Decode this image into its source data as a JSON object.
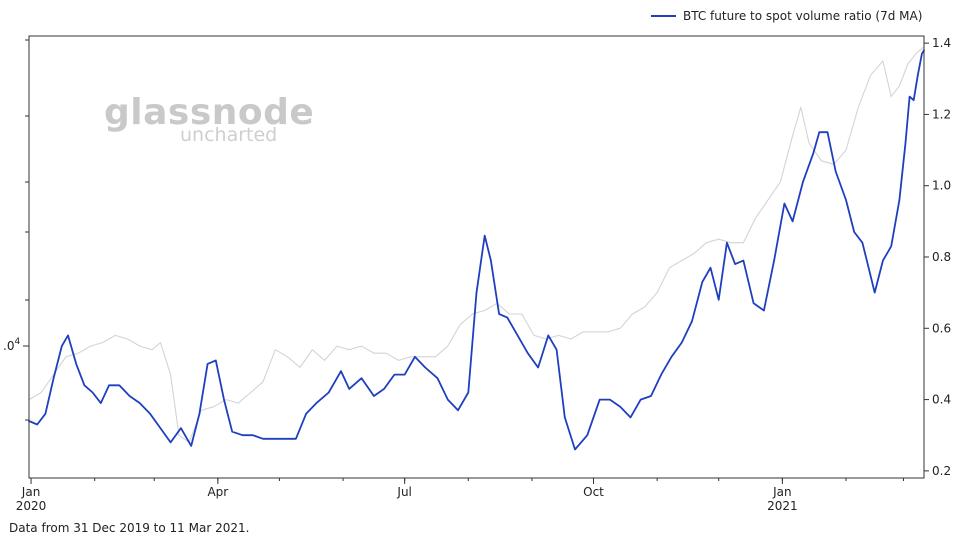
{
  "footnote": "Data from 31 Dec 2019 to 11 Mar 2021.",
  "watermark": {
    "line1": "glassnode",
    "line2": "uncharted"
  },
  "colors": {
    "primary_series": "#1f3fbf",
    "secondary_series": "#d4d4d4",
    "axis": "#333333",
    "grid": "#e6e6e6"
  },
  "chart_data": {
    "type": "line",
    "title": "",
    "xlabel": "",
    "ylabel": "",
    "x_ticks": [
      {
        "date": "2020-01-01",
        "label": "Jan",
        "sublabel": "2020"
      },
      {
        "date": "2020-04-01",
        "label": "Apr",
        "sublabel": ""
      },
      {
        "date": "2020-07-01",
        "label": "Jul",
        "sublabel": ""
      },
      {
        "date": "2020-10-01",
        "label": "Oct",
        "sublabel": ""
      },
      {
        "date": "2021-01-01",
        "label": "Jan",
        "sublabel": "2021"
      }
    ],
    "xlim": [
      "2019-12-31",
      "2021-03-11"
    ],
    "y_right": {
      "ylim": [
        0.18,
        1.42
      ],
      "ticks": [
        "0.2",
        "0.4",
        "0.6",
        "0.8",
        "1.0",
        "1.2",
        "1.4"
      ]
    },
    "y_left": {
      "scale": "log",
      "tick_label_base": "",
      "tick_label_exp": "4",
      "tick_label_text": ".0"
    },
    "legend": {
      "position": "top-right"
    },
    "series": [
      {
        "name": "BTC future to spot volume ratio (7d MA)",
        "axis": "right",
        "points": [
          [
            "2019-12-31",
            0.34
          ],
          [
            "2020-01-04",
            0.33
          ],
          [
            "2020-01-08",
            0.36
          ],
          [
            "2020-01-12",
            0.46
          ],
          [
            "2020-01-16",
            0.55
          ],
          [
            "2020-01-19",
            0.58
          ],
          [
            "2020-01-23",
            0.5
          ],
          [
            "2020-01-27",
            0.44
          ],
          [
            "2020-01-31",
            0.42
          ],
          [
            "2020-02-04",
            0.39
          ],
          [
            "2020-02-08",
            0.44
          ],
          [
            "2020-02-13",
            0.44
          ],
          [
            "2020-02-18",
            0.41
          ],
          [
            "2020-02-23",
            0.39
          ],
          [
            "2020-02-28",
            0.36
          ],
          [
            "2020-03-04",
            0.32
          ],
          [
            "2020-03-09",
            0.28
          ],
          [
            "2020-03-14",
            0.32
          ],
          [
            "2020-03-19",
            0.27
          ],
          [
            "2020-03-23",
            0.36
          ],
          [
            "2020-03-27",
            0.5
          ],
          [
            "2020-03-31",
            0.51
          ],
          [
            "2020-04-04",
            0.4
          ],
          [
            "2020-04-08",
            0.31
          ],
          [
            "2020-04-13",
            0.3
          ],
          [
            "2020-04-18",
            0.3
          ],
          [
            "2020-04-23",
            0.29
          ],
          [
            "2020-04-28",
            0.29
          ],
          [
            "2020-05-03",
            0.29
          ],
          [
            "2020-05-09",
            0.29
          ],
          [
            "2020-05-14",
            0.36
          ],
          [
            "2020-05-19",
            0.39
          ],
          [
            "2020-05-25",
            0.42
          ],
          [
            "2020-05-31",
            0.48
          ],
          [
            "2020-06-04",
            0.43
          ],
          [
            "2020-06-10",
            0.46
          ],
          [
            "2020-06-16",
            0.41
          ],
          [
            "2020-06-21",
            0.43
          ],
          [
            "2020-06-26",
            0.47
          ],
          [
            "2020-07-01",
            0.47
          ],
          [
            "2020-07-06",
            0.52
          ],
          [
            "2020-07-11",
            0.49
          ],
          [
            "2020-07-17",
            0.46
          ],
          [
            "2020-07-22",
            0.4
          ],
          [
            "2020-07-27",
            0.37
          ],
          [
            "2020-08-01",
            0.42
          ],
          [
            "2020-08-05",
            0.7
          ],
          [
            "2020-08-09",
            0.86
          ],
          [
            "2020-08-12",
            0.79
          ],
          [
            "2020-08-16",
            0.64
          ],
          [
            "2020-08-20",
            0.63
          ],
          [
            "2020-08-25",
            0.58
          ],
          [
            "2020-08-30",
            0.53
          ],
          [
            "2020-09-04",
            0.49
          ],
          [
            "2020-09-09",
            0.58
          ],
          [
            "2020-09-13",
            0.54
          ],
          [
            "2020-09-17",
            0.35
          ],
          [
            "2020-09-22",
            0.26
          ],
          [
            "2020-09-28",
            0.3
          ],
          [
            "2020-10-04",
            0.4
          ],
          [
            "2020-10-09",
            0.4
          ],
          [
            "2020-10-14",
            0.38
          ],
          [
            "2020-10-19",
            0.35
          ],
          [
            "2020-10-24",
            0.4
          ],
          [
            "2020-10-29",
            0.41
          ],
          [
            "2020-11-03",
            0.47
          ],
          [
            "2020-11-08",
            0.52
          ],
          [
            "2020-11-13",
            0.56
          ],
          [
            "2020-11-18",
            0.62
          ],
          [
            "2020-11-23",
            0.73
          ],
          [
            "2020-11-27",
            0.77
          ],
          [
            "2020-12-01",
            0.68
          ],
          [
            "2020-12-05",
            0.84
          ],
          [
            "2020-12-09",
            0.78
          ],
          [
            "2020-12-13",
            0.79
          ],
          [
            "2020-12-18",
            0.67
          ],
          [
            "2020-12-23",
            0.65
          ],
          [
            "2020-12-28",
            0.79
          ],
          [
            "2021-01-02",
            0.95
          ],
          [
            "2021-01-06",
            0.9
          ],
          [
            "2021-01-11",
            1.01
          ],
          [
            "2021-01-16",
            1.09
          ],
          [
            "2021-01-19",
            1.15
          ],
          [
            "2021-01-23",
            1.15
          ],
          [
            "2021-01-27",
            1.04
          ],
          [
            "2021-02-01",
            0.96
          ],
          [
            "2021-02-05",
            0.87
          ],
          [
            "2021-02-09",
            0.84
          ],
          [
            "2021-02-12",
            0.77
          ],
          [
            "2021-02-15",
            0.7
          ],
          [
            "2021-02-19",
            0.79
          ],
          [
            "2021-02-23",
            0.83
          ],
          [
            "2021-02-27",
            0.96
          ],
          [
            "2021-03-02",
            1.12
          ],
          [
            "2021-03-04",
            1.25
          ],
          [
            "2021-03-06",
            1.24
          ],
          [
            "2021-03-08",
            1.31
          ],
          [
            "2021-03-10",
            1.37
          ],
          [
            "2021-03-11",
            1.38
          ]
        ]
      },
      {
        "name": "",
        "axis": "left",
        "points": [
          [
            "2019-12-31",
            0.4
          ],
          [
            "2020-01-06",
            0.42
          ],
          [
            "2020-01-12",
            0.47
          ],
          [
            "2020-01-18",
            0.52
          ],
          [
            "2020-01-24",
            0.53
          ],
          [
            "2020-01-30",
            0.55
          ],
          [
            "2020-02-05",
            0.56
          ],
          [
            "2020-02-11",
            0.58
          ],
          [
            "2020-02-17",
            0.57
          ],
          [
            "2020-02-23",
            0.55
          ],
          [
            "2020-02-29",
            0.54
          ],
          [
            "2020-03-04",
            0.56
          ],
          [
            "2020-03-09",
            0.47
          ],
          [
            "2020-03-13",
            0.3
          ],
          [
            "2020-03-18",
            0.28
          ],
          [
            "2020-03-24",
            0.37
          ],
          [
            "2020-03-30",
            0.38
          ],
          [
            "2020-04-05",
            0.4
          ],
          [
            "2020-04-11",
            0.39
          ],
          [
            "2020-04-17",
            0.42
          ],
          [
            "2020-04-23",
            0.45
          ],
          [
            "2020-04-29",
            0.54
          ],
          [
            "2020-05-05",
            0.52
          ],
          [
            "2020-05-11",
            0.49
          ],
          [
            "2020-05-17",
            0.54
          ],
          [
            "2020-05-23",
            0.51
          ],
          [
            "2020-05-29",
            0.55
          ],
          [
            "2020-06-04",
            0.54
          ],
          [
            "2020-06-10",
            0.55
          ],
          [
            "2020-06-16",
            0.53
          ],
          [
            "2020-06-22",
            0.53
          ],
          [
            "2020-06-28",
            0.51
          ],
          [
            "2020-07-04",
            0.52
          ],
          [
            "2020-07-10",
            0.52
          ],
          [
            "2020-07-16",
            0.52
          ],
          [
            "2020-07-22",
            0.55
          ],
          [
            "2020-07-28",
            0.61
          ],
          [
            "2020-08-03",
            0.64
          ],
          [
            "2020-08-09",
            0.65
          ],
          [
            "2020-08-15",
            0.67
          ],
          [
            "2020-08-21",
            0.64
          ],
          [
            "2020-08-27",
            0.64
          ],
          [
            "2020-09-02",
            0.58
          ],
          [
            "2020-09-08",
            0.57
          ],
          [
            "2020-09-14",
            0.58
          ],
          [
            "2020-09-20",
            0.57
          ],
          [
            "2020-09-26",
            0.59
          ],
          [
            "2020-10-02",
            0.59
          ],
          [
            "2020-10-08",
            0.59
          ],
          [
            "2020-10-14",
            0.6
          ],
          [
            "2020-10-20",
            0.64
          ],
          [
            "2020-10-26",
            0.66
          ],
          [
            "2020-11-01",
            0.7
          ],
          [
            "2020-11-07",
            0.77
          ],
          [
            "2020-11-13",
            0.79
          ],
          [
            "2020-11-19",
            0.81
          ],
          [
            "2020-11-25",
            0.84
          ],
          [
            "2020-12-01",
            0.85
          ],
          [
            "2020-12-07",
            0.84
          ],
          [
            "2020-12-13",
            0.84
          ],
          [
            "2020-12-19",
            0.91
          ],
          [
            "2020-12-25",
            0.96
          ],
          [
            "2020-12-31",
            1.01
          ],
          [
            "2021-01-06",
            1.14
          ],
          [
            "2021-01-10",
            1.22
          ],
          [
            "2021-01-14",
            1.12
          ],
          [
            "2021-01-20",
            1.07
          ],
          [
            "2021-01-26",
            1.06
          ],
          [
            "2021-02-01",
            1.1
          ],
          [
            "2021-02-07",
            1.22
          ],
          [
            "2021-02-13",
            1.31
          ],
          [
            "2021-02-19",
            1.35
          ],
          [
            "2021-02-23",
            1.25
          ],
          [
            "2021-02-27",
            1.28
          ],
          [
            "2021-03-03",
            1.34
          ],
          [
            "2021-03-07",
            1.37
          ],
          [
            "2021-03-11",
            1.39
          ]
        ]
      }
    ]
  }
}
